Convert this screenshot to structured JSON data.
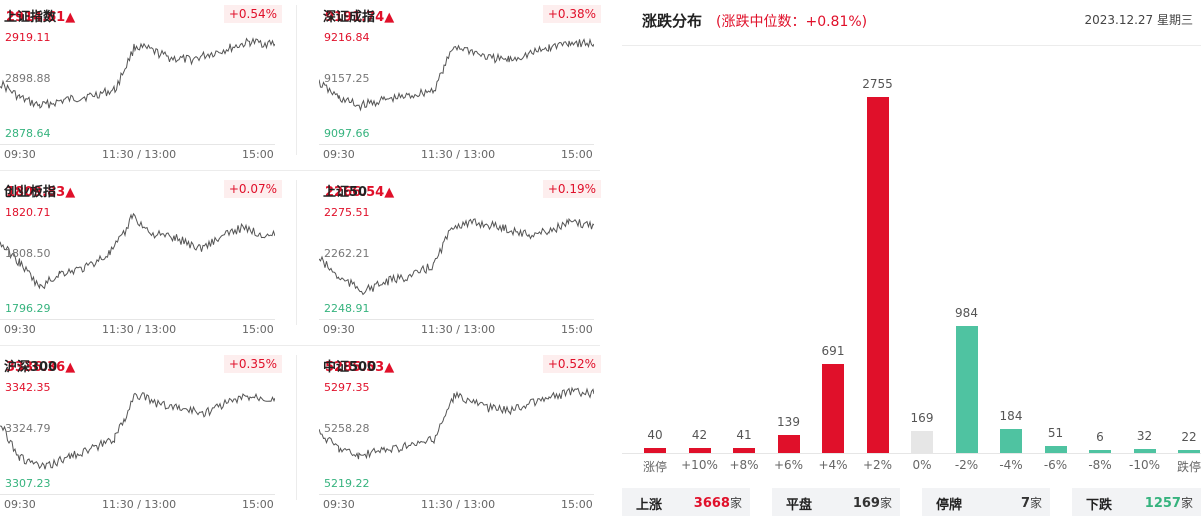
{
  "indices": [
    {
      "name": "上证指数",
      "price": "2914.61▲",
      "change": "+0.54%",
      "high": "2919.11",
      "mid": "2898.88",
      "low": "2878.64",
      "times": [
        "09:30",
        "11:30 / 13:00",
        "15:00"
      ]
    },
    {
      "name": "深证成指",
      "price": "9191.74▲",
      "change": "+0.38%",
      "high": "9216.84",
      "mid": "9157.25",
      "low": "9097.66",
      "times": [
        "09:30",
        "11:30 / 13:00",
        "15:00"
      ]
    },
    {
      "name": "创业板指",
      "price": "1809.83▲",
      "change": "+0.07%",
      "high": "1820.71",
      "mid": "1808.50",
      "low": "1796.29",
      "times": [
        "09:30",
        "11:30 / 13:00",
        "15:00"
      ]
    },
    {
      "name": "上证50",
      "price": "2266.54▲",
      "change": "+0.19%",
      "high": "2275.51",
      "mid": "2262.21",
      "low": "2248.91",
      "times": [
        "09:30",
        "11:30 / 13:00",
        "15:00"
      ]
    },
    {
      "name": "沪深300",
      "price": "3336.36▲",
      "change": "+0.35%",
      "high": "3342.35",
      "mid": "3324.79",
      "low": "3307.23",
      "times": [
        "09:30",
        "11:30 / 13:00",
        "15:00"
      ]
    },
    {
      "name": "中证500",
      "price": "5285.53▲",
      "change": "+0.52%",
      "high": "5297.35",
      "mid": "5258.28",
      "low": "5219.22",
      "times": [
        "09:30",
        "11:30 / 13:00",
        "15:00"
      ]
    }
  ],
  "distribution": {
    "title": "涨跌分布",
    "median": "(涨跌中位数：+0.81%)",
    "date": "2023.12.27 星期三",
    "colors": {
      "up": "#e0102a",
      "flat": "#e6e6e6",
      "down": "#4fc3a1"
    },
    "buckets": [
      {
        "label": "涨停",
        "value": 40,
        "kind": "up"
      },
      {
        "label": "+10%",
        "value": 42,
        "kind": "up"
      },
      {
        "label": "+8%",
        "value": 41,
        "kind": "up"
      },
      {
        "label": "+6%",
        "value": 139,
        "kind": "up"
      },
      {
        "label": "+4%",
        "value": 691,
        "kind": "up"
      },
      {
        "label": "+2%",
        "value": 2755,
        "kind": "up"
      },
      {
        "label": "0%",
        "value": 169,
        "kind": "flat"
      },
      {
        "label": "-2%",
        "value": 984,
        "kind": "down"
      },
      {
        "label": "-4%",
        "value": 184,
        "kind": "down"
      },
      {
        "label": "-6%",
        "value": 51,
        "kind": "down"
      },
      {
        "label": "-8%",
        "value": 6,
        "kind": "down"
      },
      {
        "label": "-10%",
        "value": 32,
        "kind": "down"
      },
      {
        "label": "跌停",
        "value": 22,
        "kind": "down"
      }
    ],
    "stats": [
      {
        "label": "上涨",
        "value": "3668",
        "unit": "家",
        "color": "#e0102a"
      },
      {
        "label": "平盘",
        "value": "169",
        "unit": "家",
        "color": "#333333"
      },
      {
        "label": "停牌",
        "value": "7",
        "unit": "家",
        "color": "#333333"
      },
      {
        "label": "下跌",
        "value": "1257",
        "unit": "家",
        "color": "#36b37e"
      }
    ]
  },
  "chart_data": {
    "type": "bar",
    "title": "涨跌分布",
    "categories": [
      "涨停",
      "+10%",
      "+8%",
      "+6%",
      "+4%",
      "+2%",
      "0%",
      "-2%",
      "-4%",
      "-6%",
      "-8%",
      "-10%",
      "跌停"
    ],
    "values": [
      40,
      42,
      41,
      139,
      691,
      2755,
      169,
      984,
      184,
      51,
      6,
      32,
      22
    ],
    "xlabel": "",
    "ylabel": "",
    "ylim": [
      0,
      2755
    ]
  }
}
